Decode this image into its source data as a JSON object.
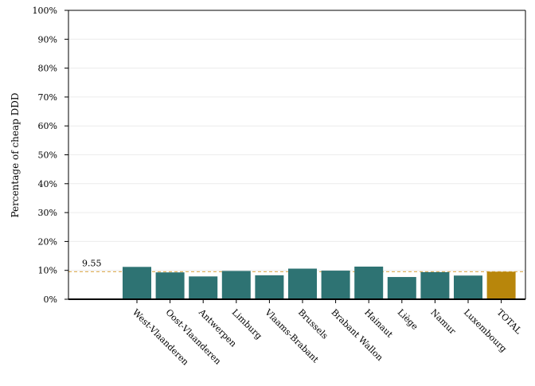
{
  "chart_data": {
    "type": "bar",
    "title": "",
    "xlabel": "",
    "ylabel": "Percentage of cheap DDD",
    "ylim": [
      0,
      100
    ],
    "yticks": [
      "0%",
      "10%",
      "20%",
      "30%",
      "40%",
      "50%",
      "60%",
      "70%",
      "80%",
      "90%",
      "100%"
    ],
    "categories": [
      "West-Vlaanderen",
      "Oost-Vlaanderen",
      "Antwerpen",
      "Limburg",
      "Vlaams-Brabant",
      "Brussels",
      "Brabant Wallon",
      "Hainaut",
      "Liège",
      "Namur",
      "Luxembourg",
      "TOTAL"
    ],
    "values": [
      11.2,
      9.3,
      7.9,
      9.8,
      8.3,
      10.6,
      9.9,
      11.3,
      7.7,
      9.4,
      8.2,
      9.55
    ],
    "reference_line": {
      "value": 9.55,
      "label": "9.55",
      "style": "dashed"
    },
    "colors": {
      "bar": "#2e7373",
      "highlight_bar": "#b8860b",
      "reference": "#d9a441",
      "grid": "#ececec"
    },
    "highlight_category": "TOTAL",
    "grid": true,
    "legend": "none"
  }
}
